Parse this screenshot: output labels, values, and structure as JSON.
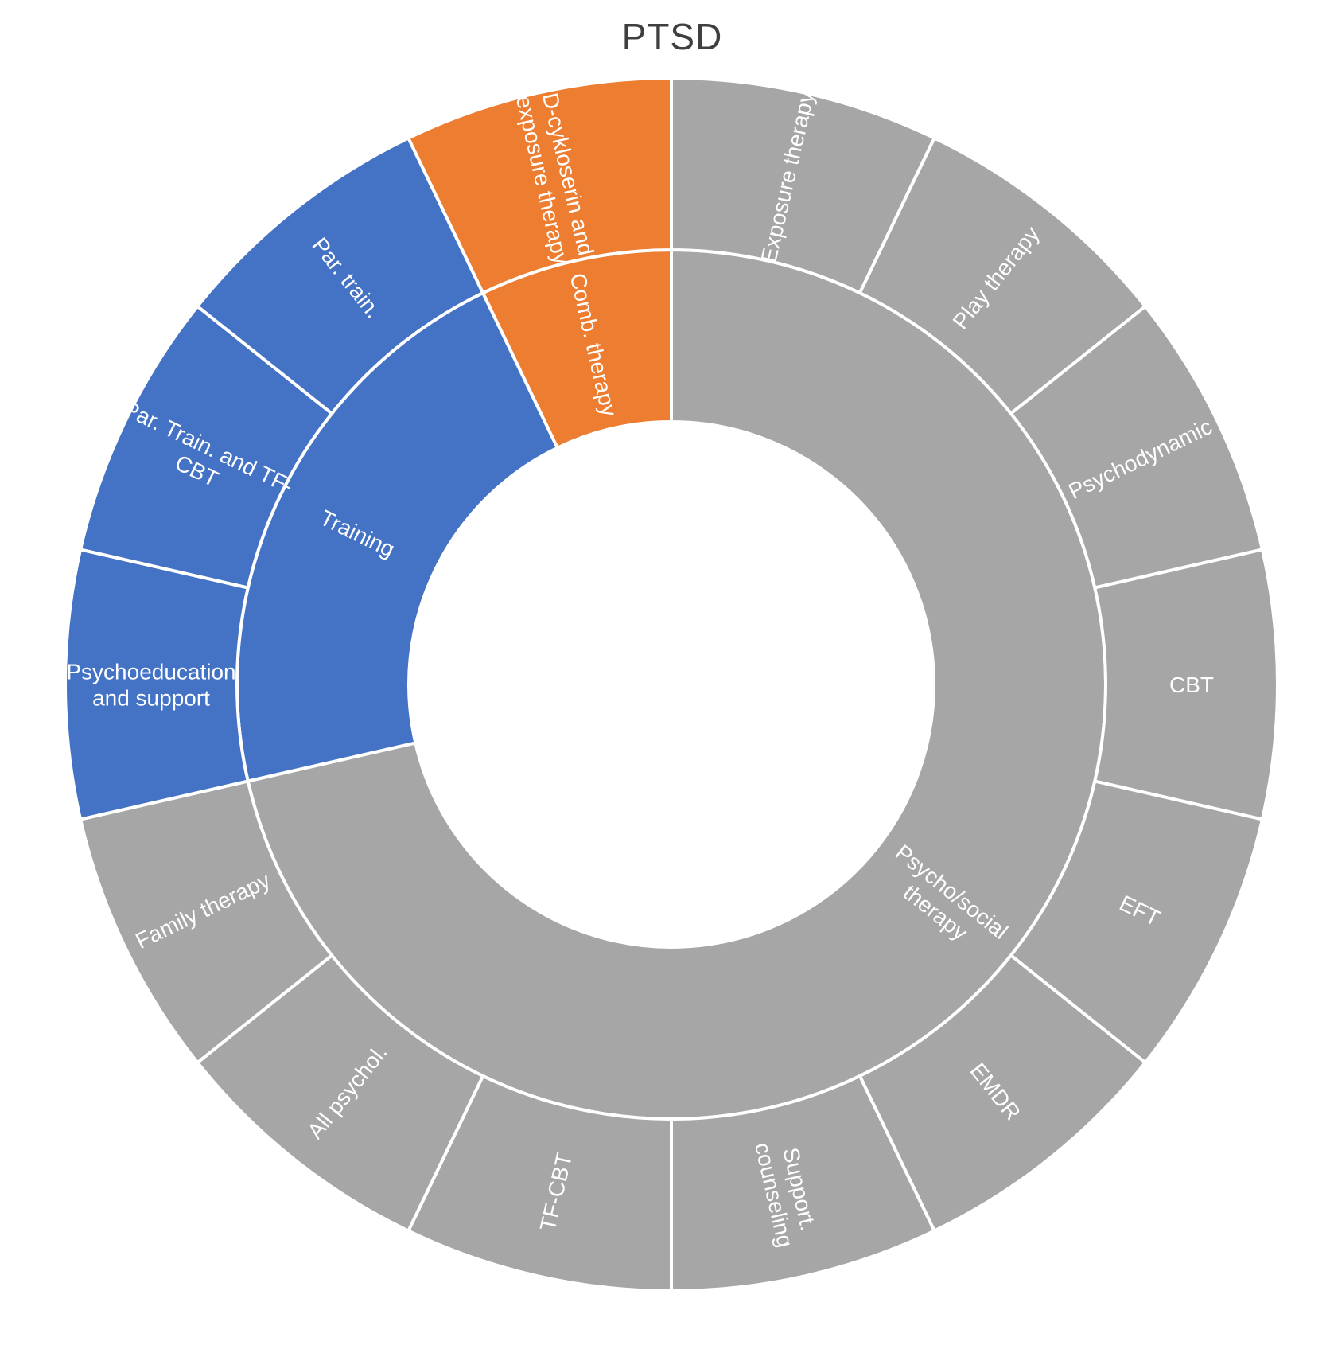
{
  "title": "PTSD",
  "colors": {
    "gray": "#A6A6A6",
    "blue": "#4472C4",
    "orange": "#ED7D31",
    "label_text": "#FFFFFF",
    "title_text": "#3F3F3F",
    "separator": "#FFFFFF",
    "background": "#FFFFFF"
  },
  "chart_data": {
    "type": "sunburst",
    "title": "PTSD",
    "rings": 2,
    "start_angle_deg": 0,
    "direction": "clockwise",
    "equal_leaf_angles": true,
    "leaf_count": 14,
    "leaf_angle_deg": 25.714,
    "legend": "none",
    "inner_ring": [
      {
        "label": "Psycho/social therapy",
        "label_lines": [
          "Psycho/social",
          "therapy"
        ],
        "color_key": "gray",
        "value": 10,
        "children": [
          {
            "label": "Exposure therapy",
            "label_lines": [
              "Exposure therapy"
            ],
            "value": 1
          },
          {
            "label": "Play therapy",
            "label_lines": [
              "Play therapy"
            ],
            "value": 1
          },
          {
            "label": "Psychodynamic",
            "label_lines": [
              "Psychodynamic"
            ],
            "value": 1
          },
          {
            "label": "CBT",
            "label_lines": [
              "CBT"
            ],
            "value": 1
          },
          {
            "label": "EFT",
            "label_lines": [
              "EFT"
            ],
            "value": 1
          },
          {
            "label": "EMDR",
            "label_lines": [
              "EMDR"
            ],
            "value": 1
          },
          {
            "label": "Support. counseling",
            "label_lines": [
              "Support.",
              "counseling"
            ],
            "value": 1
          },
          {
            "label": "TF-CBT",
            "label_lines": [
              "TF-CBT"
            ],
            "value": 1
          },
          {
            "label": "All psychol.",
            "label_lines": [
              "All psychol."
            ],
            "value": 1
          },
          {
            "label": "Family therapy",
            "label_lines": [
              "Family therapy"
            ],
            "value": 1
          }
        ]
      },
      {
        "label": "Training",
        "label_lines": [
          "Training"
        ],
        "color_key": "blue",
        "value": 3,
        "children": [
          {
            "label": "Psychoeducation and support",
            "label_lines": [
              "Psychoeducation",
              "and support"
            ],
            "value": 1
          },
          {
            "label": "Par. Train. and TF-CBT",
            "label_lines": [
              "Par. Train. and TF-",
              "CBT"
            ],
            "value": 1
          },
          {
            "label": "Par. train.",
            "label_lines": [
              "Par. train."
            ],
            "value": 1
          }
        ]
      },
      {
        "label": "Comb. therapy",
        "label_lines": [
          "Comb. therapy"
        ],
        "color_key": "orange",
        "value": 1,
        "children": [
          {
            "label": "D-cykloserin and exposure therapy",
            "label_lines": [
              "D-cykloserin and",
              "exposure therapy"
            ],
            "value": 1
          }
        ]
      }
    ]
  }
}
